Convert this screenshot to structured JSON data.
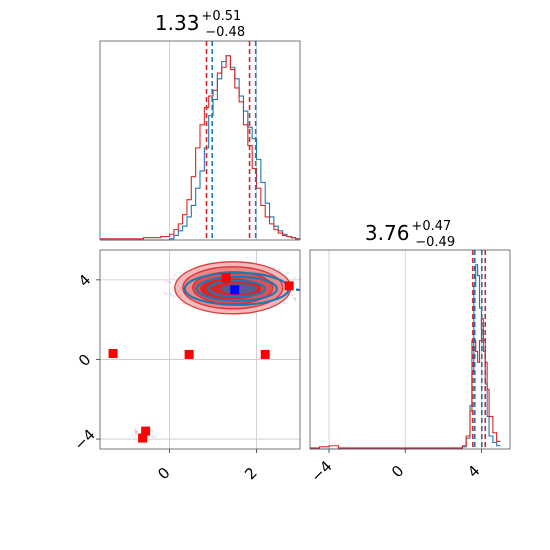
{
  "chart_data": [
    {
      "panel": "marginal-1",
      "type": "histogram",
      "title": {
        "value": "1.33",
        "upper": "+0.51",
        "lower": "−0.48"
      },
      "xlim": [
        -1.6,
        3.0
      ],
      "x": [
        -1.6,
        -1.4,
        -1.2,
        -1.0,
        -0.8,
        -0.6,
        -0.4,
        -0.2,
        0.0,
        0.1,
        0.2,
        0.3,
        0.4,
        0.5,
        0.6,
        0.7,
        0.8,
        0.9,
        1.0,
        1.1,
        1.2,
        1.3,
        1.4,
        1.5,
        1.6,
        1.7,
        1.8,
        1.9,
        2.0,
        2.1,
        2.2,
        2.3,
        2.4,
        2.5,
        2.6,
        2.7,
        2.8,
        2.9,
        3.0
      ],
      "series": [
        {
          "color": "#1f77b4",
          "values": [
            0,
            0,
            0,
            0,
            0,
            0,
            0,
            0,
            1,
            4,
            8,
            12,
            20,
            30,
            45,
            60,
            80,
            108,
            122,
            140,
            155,
            160,
            150,
            140,
            125,
            112,
            98,
            88,
            70,
            50,
            32,
            20,
            12,
            8,
            5,
            3,
            2,
            1,
            1
          ],
          "quantiles": [
            0.98,
            1.98
          ]
        },
        {
          "color": "#d62728",
          "values": [
            1,
            1,
            1,
            1,
            1,
            2,
            2,
            3,
            5,
            9,
            14,
            22,
            35,
            55,
            80,
            100,
            115,
            125,
            130,
            145,
            150,
            160,
            148,
            132,
            120,
            100,
            82,
            62,
            45,
            30,
            20,
            14,
            9,
            6,
            4,
            3,
            2,
            1,
            1
          ],
          "quantiles": [
            0.85,
            1.84
          ]
        }
      ]
    },
    {
      "panel": "marginal-2",
      "type": "histogram",
      "title": {
        "value": "3.76",
        "upper": "+0.47",
        "lower": "−0.49"
      },
      "xlim": [
        -5.0,
        5.5
      ],
      "xticks": [
        "−4",
        "0",
        "4"
      ],
      "x": [
        -5.0,
        -4.5,
        -4.0,
        -3.5,
        3.0,
        3.2,
        3.4,
        3.5,
        3.6,
        3.7,
        3.8,
        3.9,
        4.0,
        4.1,
        4.2,
        4.3,
        4.4,
        4.6,
        4.8,
        5.0
      ],
      "series": [
        {
          "color": "#1f77b4",
          "values": [
            0,
            0,
            0,
            0,
            2,
            10,
            40,
            100,
            150,
            170,
            160,
            130,
            110,
            90,
            60,
            30,
            12,
            6,
            3,
            1
          ],
          "quantiles": [
            3.65,
            4.02
          ]
        },
        {
          "color": "#d62728",
          "values": [
            1,
            2,
            3,
            1,
            3,
            12,
            35,
            70,
            100,
            90,
            80,
            100,
            120,
            100,
            80,
            55,
            30,
            15,
            7,
            2
          ],
          "quantiles": [
            3.55,
            4.2
          ]
        }
      ]
    },
    {
      "panel": "joint",
      "type": "scatter",
      "xlim": [
        -1.6,
        3.0
      ],
      "ylim": [
        -4.5,
        5.5
      ],
      "xticks": [
        "0",
        "2"
      ],
      "yticks": [
        "4",
        "0",
        "−4"
      ],
      "contour_center": [
        1.5,
        3.6
      ],
      "markers_red": [
        {
          "x": -1.3,
          "y": 0.3
        },
        {
          "x": 0.45,
          "y": 0.25
        },
        {
          "x": 2.2,
          "y": 0.25
        },
        {
          "x": 1.3,
          "y": 4.1
        },
        {
          "x": 2.75,
          "y": 3.7
        },
        {
          "x": -0.55,
          "y": -3.6
        },
        {
          "x": -0.62,
          "y": -3.95
        }
      ],
      "markers_blue": [
        {
          "x": 1.5,
          "y": 3.5
        }
      ],
      "colors": {
        "red": "#d62728",
        "blue": "#1f77b4",
        "marker_blue": "#0000ff",
        "marker_red": "#ff0000"
      }
    }
  ]
}
